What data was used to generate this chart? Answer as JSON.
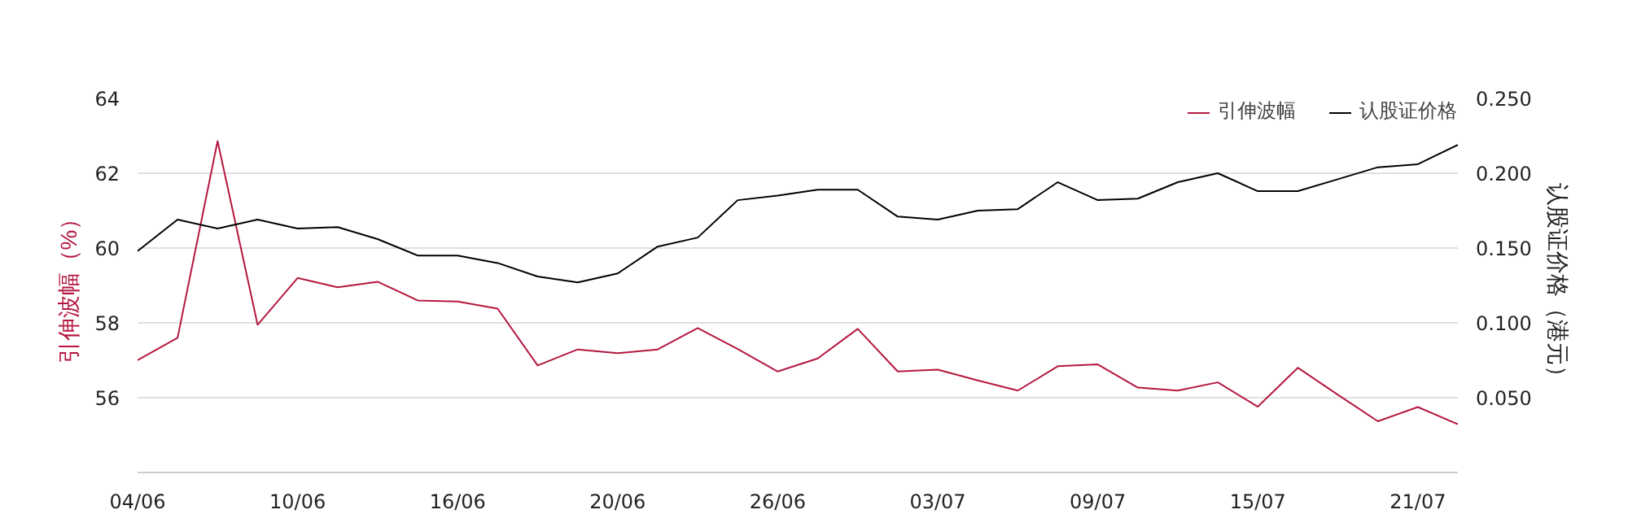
{
  "chart_data": {
    "type": "line",
    "categories": [
      "04/06",
      null,
      null,
      null,
      "10/06",
      null,
      null,
      null,
      "16/06",
      null,
      null,
      null,
      "20/06",
      null,
      null,
      null,
      "26/06",
      null,
      null,
      null,
      "03/07",
      null,
      null,
      null,
      "09/07",
      null,
      null,
      null,
      "15/07",
      null,
      null,
      null,
      "21/07",
      null
    ],
    "series": [
      {
        "name": "引伸波幅",
        "color": "#b5173f",
        "values": [
          57.0,
          57.6,
          62.86,
          57.95,
          59.2,
          58.95,
          59.1,
          58.6,
          58.57,
          58.38,
          56.86,
          57.29,
          57.19,
          57.29,
          57.86,
          57.3,
          56.7,
          57.05,
          57.84,
          56.7,
          56.75,
          56.46,
          56.19,
          56.84,
          56.89,
          56.27,
          56.19,
          56.41,
          55.76,
          56.8,
          56.08,
          55.37,
          55.75,
          55.29
        ]
      },
      {
        "name": "认股证价格",
        "color": "#000000",
        "axis": "y2",
        "values": [
          0.148,
          0.169,
          0.163,
          0.169,
          0.163,
          0.164,
          0.156,
          0.145,
          0.145,
          0.14,
          0.131,
          0.127,
          0.133,
          0.151,
          0.157,
          0.182,
          0.185,
          0.189,
          0.189,
          0.171,
          0.169,
          0.175,
          0.176,
          0.194,
          0.182,
          0.183,
          0.194,
          0.2,
          0.188,
          0.188,
          0.196,
          0.204,
          0.206,
          0.219
        ]
      }
    ],
    "ylabel": "引伸波幅（%）",
    "y2label": "认股证价格（港元）",
    "ylim": [
      54,
      64
    ],
    "yticks": [
      56,
      58,
      60,
      62,
      64
    ],
    "y2lim": [
      0,
      0.25
    ],
    "y2ticks": [
      {
        "value": 0.05,
        "label": "0.050"
      },
      {
        "value": 0.1,
        "label": "0.100"
      },
      {
        "value": 0.15,
        "label": "0.150"
      },
      {
        "value": 0.2,
        "label": "0.200"
      },
      {
        "value": 0.25,
        "label": "0.250"
      }
    ],
    "grid": "y",
    "legend": "top right"
  }
}
